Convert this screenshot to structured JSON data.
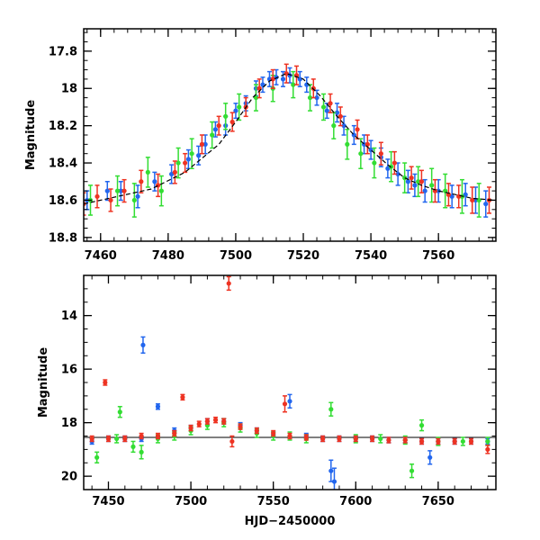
{
  "chart_data": [
    {
      "type": "scatter",
      "panel": "top",
      "title": "",
      "xlabel": "",
      "ylabel": "Magnitude",
      "xlim": [
        7455,
        7577
      ],
      "ylim": [
        18.82,
        17.68
      ],
      "y_inverted": true,
      "xticks": [
        7460,
        7480,
        7500,
        7520,
        7540,
        7560
      ],
      "yticks": [
        17.8,
        18,
        18.2,
        18.4,
        18.6,
        18.8
      ],
      "ytick_labels": [
        "17.8",
        "18",
        "18.2",
        "18.4",
        "18.6",
        "18.8"
      ],
      "grid": false,
      "legend": "none",
      "model_curve": {
        "color": "#000000",
        "style": "dashed",
        "x": [
          7455,
          7465,
          7475,
          7485,
          7495,
          7500,
          7505,
          7510,
          7515,
          7520,
          7525,
          7530,
          7535,
          7540,
          7545,
          7550,
          7555,
          7560,
          7565,
          7570,
          7577
        ],
        "y": [
          18.62,
          18.58,
          18.54,
          18.45,
          18.3,
          18.18,
          18.05,
          17.96,
          17.92,
          17.95,
          18.04,
          18.15,
          18.25,
          18.33,
          18.41,
          18.48,
          18.52,
          18.55,
          18.57,
          18.59,
          18.6
        ]
      },
      "series": [
        {
          "color": "#2266ee",
          "x": [
            7456,
            7462,
            7466,
            7471,
            7476,
            7481,
            7486,
            7489,
            7491,
            7494,
            7497,
            7500,
            7503,
            7506,
            7508,
            7510,
            7512,
            7514,
            7516,
            7519,
            7521,
            7524,
            7527,
            7530,
            7532,
            7535,
            7538,
            7540,
            7543,
            7545,
            7548,
            7551,
            7553,
            7556,
            7560,
            7564,
            7568,
            7571,
            7574
          ],
          "y": [
            18.6,
            18.55,
            18.55,
            18.58,
            18.5,
            18.46,
            18.38,
            18.36,
            18.3,
            18.22,
            18.2,
            18.12,
            18.08,
            18.0,
            17.98,
            17.95,
            17.94,
            17.95,
            17.93,
            17.95,
            17.98,
            18.05,
            18.12,
            18.13,
            18.2,
            18.25,
            18.3,
            18.33,
            18.37,
            18.43,
            18.46,
            18.5,
            18.52,
            18.55,
            18.55,
            18.58,
            18.57,
            18.6,
            18.62
          ],
          "err": [
            0.05,
            0.05,
            0.05,
            0.06,
            0.05,
            0.05,
            0.05,
            0.05,
            0.05,
            0.04,
            0.05,
            0.04,
            0.04,
            0.04,
            0.04,
            0.04,
            0.04,
            0.04,
            0.04,
            0.04,
            0.04,
            0.04,
            0.04,
            0.05,
            0.05,
            0.05,
            0.05,
            0.05,
            0.05,
            0.05,
            0.06,
            0.06,
            0.06,
            0.06,
            0.06,
            0.06,
            0.06,
            0.07,
            0.07
          ]
        },
        {
          "color": "#33dd33",
          "x": [
            7457,
            7465,
            7470,
            7474,
            7478,
            7483,
            7487,
            7493,
            7497,
            7501,
            7506,
            7511,
            7517,
            7522,
            7526,
            7529,
            7533,
            7537,
            7541,
            7546,
            7550,
            7554,
            7558,
            7562,
            7567,
            7572
          ],
          "y": [
            18.6,
            18.55,
            18.6,
            18.45,
            18.55,
            18.4,
            18.35,
            18.25,
            18.15,
            18.1,
            18.05,
            18.0,
            17.98,
            18.05,
            18.1,
            18.2,
            18.3,
            18.35,
            18.4,
            18.42,
            18.48,
            18.5,
            18.52,
            18.55,
            18.58,
            18.6
          ],
          "err": [
            0.08,
            0.08,
            0.09,
            0.08,
            0.08,
            0.08,
            0.08,
            0.07,
            0.07,
            0.07,
            0.07,
            0.07,
            0.07,
            0.07,
            0.07,
            0.07,
            0.08,
            0.08,
            0.08,
            0.08,
            0.08,
            0.08,
            0.09,
            0.09,
            0.09,
            0.09
          ]
        },
        {
          "color": "#ee3322",
          "x": [
            7455,
            7459,
            7463,
            7467,
            7472,
            7477,
            7482,
            7485,
            7490,
            7495,
            7499,
            7503,
            7507,
            7511,
            7515,
            7518,
            7523,
            7528,
            7531,
            7536,
            7539,
            7543,
            7547,
            7552,
            7555,
            7559,
            7563,
            7566,
            7570,
            7575
          ],
          "y": [
            18.62,
            18.58,
            18.6,
            18.55,
            18.5,
            18.52,
            18.45,
            18.4,
            18.3,
            18.2,
            18.18,
            18.1,
            18.0,
            17.95,
            17.92,
            17.93,
            18.0,
            18.08,
            18.15,
            18.22,
            18.3,
            18.35,
            18.4,
            18.48,
            18.5,
            18.55,
            18.57,
            18.58,
            18.6,
            18.6
          ],
          "err": [
            0.06,
            0.06,
            0.06,
            0.06,
            0.06,
            0.06,
            0.06,
            0.05,
            0.05,
            0.05,
            0.05,
            0.05,
            0.05,
            0.05,
            0.05,
            0.05,
            0.05,
            0.05,
            0.05,
            0.05,
            0.05,
            0.06,
            0.06,
            0.06,
            0.06,
            0.06,
            0.06,
            0.06,
            0.07,
            0.07
          ]
        }
      ]
    },
    {
      "type": "scatter",
      "panel": "bottom",
      "title": "",
      "xlabel": "HJD−2450000",
      "ylabel": "Magnitude",
      "xlim": [
        7435,
        7685
      ],
      "ylim": [
        20.5,
        12.5
      ],
      "y_inverted": true,
      "xticks": [
        7450,
        7500,
        7550,
        7600,
        7650
      ],
      "yticks": [
        14,
        16,
        18,
        20
      ],
      "ytick_labels": [
        "14",
        "16",
        "18",
        "20"
      ],
      "grid": false,
      "legend": "none",
      "reference_line": {
        "y": 18.55,
        "color": "#000000"
      },
      "series": [
        {
          "color": "#2266ee",
          "x": [
            7440,
            7450,
            7460,
            7470,
            7471,
            7480,
            7490,
            7500,
            7510,
            7520,
            7530,
            7540,
            7550,
            7560,
            7570,
            7580,
            7585,
            7587,
            7590,
            7600,
            7610,
            7620,
            7630,
            7640,
            7645,
            7650,
            7660,
            7670,
            7680
          ],
          "y": [
            18.7,
            18.6,
            18.6,
            18.6,
            15.1,
            17.4,
            18.3,
            18.2,
            17.95,
            17.95,
            18.1,
            18.3,
            18.45,
            17.2,
            18.5,
            18.6,
            19.8,
            20.2,
            18.6,
            18.6,
            18.6,
            18.65,
            18.65,
            18.7,
            19.3,
            18.7,
            18.7,
            18.7,
            18.7
          ],
          "err": [
            0.1,
            0.1,
            0.1,
            0.1,
            0.3,
            0.1,
            0.1,
            0.1,
            0.1,
            0.1,
            0.1,
            0.1,
            0.1,
            0.25,
            0.1,
            0.1,
            0.4,
            0.5,
            0.1,
            0.1,
            0.1,
            0.1,
            0.1,
            0.1,
            0.25,
            0.1,
            0.1,
            0.1,
            0.1
          ]
        },
        {
          "color": "#33dd33",
          "x": [
            7443,
            7455,
            7457,
            7465,
            7470,
            7480,
            7490,
            7500,
            7510,
            7520,
            7530,
            7540,
            7550,
            7560,
            7570,
            7585,
            7600,
            7615,
            7630,
            7634,
            7640,
            7650,
            7665,
            7680
          ],
          "y": [
            19.3,
            18.6,
            17.6,
            18.9,
            19.1,
            18.6,
            18.5,
            18.3,
            18.1,
            18.0,
            18.2,
            18.4,
            18.5,
            18.5,
            18.6,
            17.5,
            18.6,
            18.6,
            18.65,
            19.8,
            18.1,
            18.7,
            18.7,
            18.7
          ],
          "err": [
            0.2,
            0.15,
            0.2,
            0.2,
            0.25,
            0.15,
            0.15,
            0.15,
            0.15,
            0.15,
            0.15,
            0.15,
            0.15,
            0.15,
            0.15,
            0.25,
            0.15,
            0.15,
            0.15,
            0.25,
            0.2,
            0.15,
            0.15,
            0.15
          ]
        },
        {
          "color": "#ee3322",
          "x": [
            7440,
            7448,
            7450,
            7460,
            7470,
            7480,
            7490,
            7495,
            7500,
            7505,
            7510,
            7515,
            7520,
            7523,
            7525,
            7530,
            7540,
            7550,
            7557,
            7560,
            7570,
            7580,
            7590,
            7600,
            7610,
            7620,
            7630,
            7640,
            7650,
            7660,
            7670,
            7680
          ],
          "y": [
            18.6,
            16.5,
            18.6,
            18.6,
            18.5,
            18.5,
            18.4,
            17.05,
            18.2,
            18.05,
            17.95,
            17.9,
            17.95,
            12.8,
            18.7,
            18.15,
            18.3,
            18.4,
            17.3,
            18.5,
            18.55,
            18.6,
            18.6,
            18.6,
            18.6,
            18.65,
            18.65,
            18.7,
            18.7,
            18.7,
            18.7,
            19.0
          ],
          "err": [
            0.1,
            0.1,
            0.1,
            0.1,
            0.1,
            0.1,
            0.1,
            0.1,
            0.1,
            0.1,
            0.1,
            0.1,
            0.1,
            0.25,
            0.2,
            0.1,
            0.1,
            0.1,
            0.3,
            0.1,
            0.1,
            0.1,
            0.1,
            0.1,
            0.1,
            0.1,
            0.1,
            0.1,
            0.1,
            0.1,
            0.1,
            0.15
          ]
        }
      ]
    }
  ]
}
